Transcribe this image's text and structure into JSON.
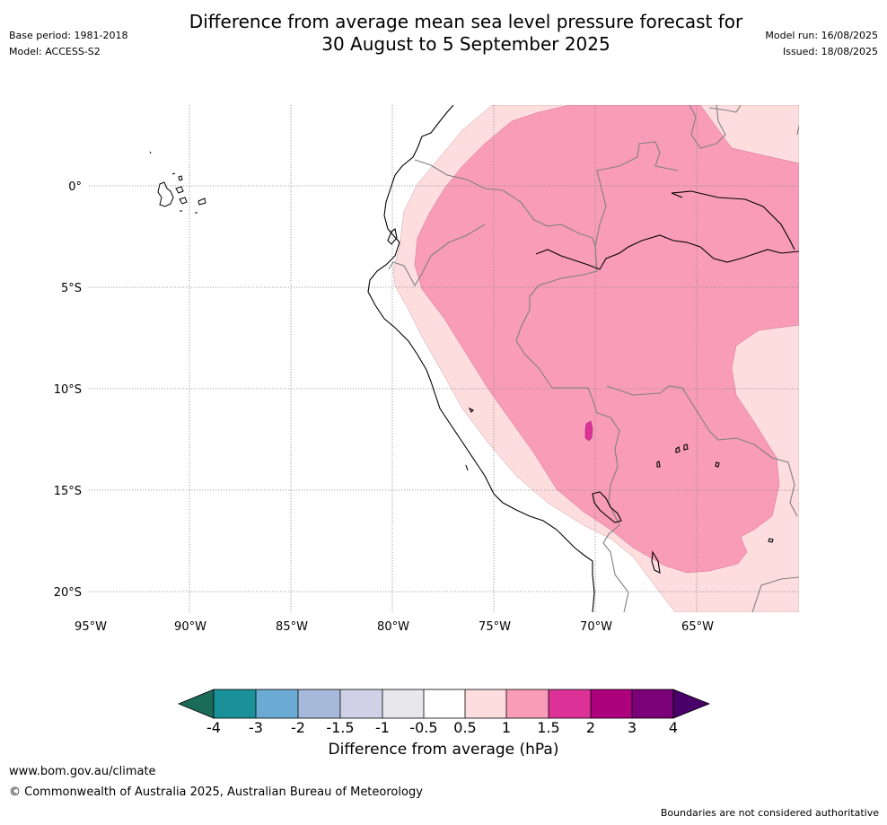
{
  "header": {
    "title_line1": "Difference from average mean sea level pressure forecast for",
    "title_line2": "30 August to 5 September 2025",
    "base_period": "Base period: 1981-2018",
    "model": "Model: ACCESS-S2",
    "model_run": "Model run: 16/08/2025",
    "issued": "Issued: 18/08/2025"
  },
  "map": {
    "lon_labels": [
      "95°W",
      "90°W",
      "85°W",
      "80°W",
      "75°W",
      "70°W",
      "65°W"
    ],
    "lat_labels": [
      "0°",
      "5°S",
      "10°S",
      "15°S",
      "20°S"
    ],
    "gridlines": true,
    "colors": {
      "band_0_5_to_1": "#fdddde",
      "band_1_to_1_5": "#f99cb8",
      "band_1_5_to_2": "#dc3298"
    }
  },
  "colorbar": {
    "title": "Difference from average (hPa)",
    "tick_labels": [
      "-4",
      "-3",
      "-2",
      "-1.5",
      "-1",
      "-0.5",
      "0.5",
      "1",
      "1.5",
      "2",
      "3",
      "4"
    ],
    "colors": [
      "#1a6b58",
      "#1a9099",
      "#6aaad3",
      "#a6b9da",
      "#d0d1e6",
      "#e8e8ec",
      "#ffffff",
      "#fdddde",
      "#f99cb8",
      "#dc3298",
      "#ad017e",
      "#7a0177",
      "#49006a"
    ]
  },
  "footer": {
    "url": "www.bom.gov.au/climate",
    "copyright": "© Commonwealth of Australia 2025, Australian Bureau of Meteorology",
    "note": "Boundaries are not considered authoritative"
  }
}
